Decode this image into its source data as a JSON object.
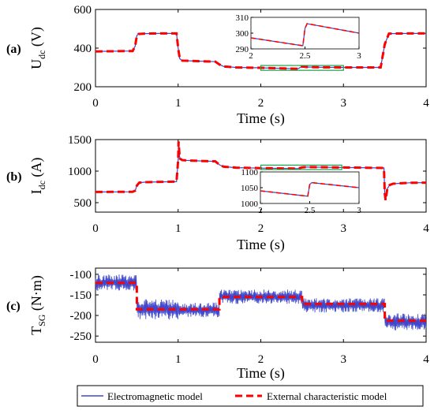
{
  "colors": {
    "electromagnetic": "#3f48cc",
    "external": "#ff0000",
    "zoom_box": "#19a34a",
    "axis": "#000000"
  },
  "legend": {
    "electromagnetic_label": "Electromagnetic model",
    "external_label": "External characteristic model"
  },
  "chart_data": [
    {
      "type": "line",
      "panel_label": "(a)",
      "ylabel_main": "U",
      "ylabel_sub": "dc",
      "ylabel_unit": "(V)",
      "xlabel": "Time (s)",
      "xlim": [
        0,
        4
      ],
      "ylim": [
        200,
        600
      ],
      "xticks": [
        "0",
        "1",
        "2",
        "3",
        "4"
      ],
      "yticks": [
        "200",
        "400",
        "600"
      ],
      "grid": false,
      "series": [
        {
          "name": "Electromagnetic model",
          "x": [
            0,
            0.45,
            0.48,
            0.5,
            0.52,
            0.6,
            0.8,
            0.98,
            1.0,
            1.02,
            1.05,
            1.3,
            1.45,
            1.5,
            1.55,
            1.7,
            2.0,
            2.45,
            2.5,
            2.55,
            2.7,
            3.0,
            3.45,
            3.5,
            3.55,
            3.8,
            4.0
          ],
          "y": [
            383,
            385,
            410,
            465,
            473,
            475,
            476,
            476,
            400,
            345,
            335,
            332,
            330,
            315,
            305,
            300,
            298,
            293,
            305,
            302,
            301,
            300,
            300,
            420,
            475,
            476,
            476
          ]
        },
        {
          "name": "External characteristic model",
          "x": [
            0,
            0.45,
            0.48,
            0.5,
            0.52,
            0.6,
            0.8,
            0.98,
            1.0,
            1.02,
            1.05,
            1.3,
            1.45,
            1.5,
            1.55,
            1.7,
            2.0,
            2.45,
            2.5,
            2.55,
            2.7,
            3.0,
            3.45,
            3.5,
            3.55,
            3.8,
            4.0
          ],
          "y": [
            383,
            385,
            410,
            465,
            473,
            475,
            476,
            476,
            400,
            345,
            335,
            332,
            330,
            315,
            305,
            300,
            298,
            293,
            305,
            302,
            301,
            300,
            300,
            420,
            475,
            476,
            476
          ]
        }
      ],
      "zoom_region": {
        "x": [
          2,
          3
        ],
        "y": [
          285,
          310
        ]
      },
      "inset": {
        "xlim": [
          2,
          3
        ],
        "ylim": [
          290,
          310
        ],
        "xticks": [
          "2",
          "2.5",
          "3"
        ],
        "yticks": [
          "290",
          "300",
          "310"
        ],
        "x": [
          2,
          2.48,
          2.5,
          2.52,
          3
        ],
        "y": [
          297,
          292,
          303,
          306,
          300
        ]
      }
    },
    {
      "type": "line",
      "panel_label": "(b)",
      "ylabel_main": "I",
      "ylabel_sub": "dc",
      "ylabel_unit": "(A)",
      "xlabel": "Time (s)",
      "xlim": [
        0,
        4
      ],
      "ylim": [
        350,
        1500
      ],
      "xticks": [
        "0",
        "1",
        "2",
        "3",
        "4"
      ],
      "yticks": [
        "500",
        "1000",
        "1500"
      ],
      "grid": false,
      "series": [
        {
          "name": "Electromagnetic model",
          "x": [
            0,
            0.45,
            0.48,
            0.5,
            0.53,
            0.6,
            0.8,
            0.98,
            1.0,
            1.005,
            1.02,
            1.05,
            1.1,
            1.3,
            1.45,
            1.5,
            1.55,
            1.7,
            2.0,
            2.45,
            2.5,
            2.55,
            3.0,
            3.49,
            3.5,
            3.51,
            3.53,
            3.56,
            3.6,
            3.8,
            4.0
          ],
          "y": [
            670,
            672,
            690,
            770,
            818,
            825,
            830,
            832,
            1180,
            1470,
            1200,
            1175,
            1170,
            1160,
            1155,
            1100,
            1070,
            1055,
            1048,
            1040,
            1060,
            1065,
            1058,
            1050,
            640,
            540,
            720,
            780,
            800,
            815,
            818
          ]
        },
        {
          "name": "External characteristic model",
          "x": [
            0,
            0.45,
            0.48,
            0.5,
            0.53,
            0.6,
            0.8,
            0.98,
            1.0,
            1.005,
            1.02,
            1.05,
            1.1,
            1.3,
            1.45,
            1.5,
            1.55,
            1.7,
            2.0,
            2.45,
            2.5,
            2.55,
            3.0,
            3.49,
            3.5,
            3.51,
            3.53,
            3.56,
            3.6,
            3.8,
            4.0
          ],
          "y": [
            670,
            672,
            690,
            770,
            818,
            825,
            830,
            832,
            1180,
            1470,
            1200,
            1175,
            1170,
            1160,
            1155,
            1100,
            1070,
            1055,
            1048,
            1040,
            1060,
            1065,
            1058,
            1050,
            640,
            540,
            720,
            780,
            800,
            815,
            818
          ]
        }
      ],
      "zoom_region": {
        "x": [
          2,
          2.98
        ],
        "y": [
          1025,
          1095
        ]
      },
      "inset": {
        "xlim": [
          2,
          3
        ],
        "ylim": [
          1000,
          1100
        ],
        "xticks": [
          "2",
          "2.5",
          "3"
        ],
        "yticks": [
          "1000",
          "1050",
          "1100"
        ],
        "x": [
          2,
          2.48,
          2.5,
          2.52,
          3
        ],
        "y": [
          1040,
          1023,
          1060,
          1066,
          1050
        ]
      }
    },
    {
      "type": "line",
      "panel_label": "(c)",
      "ylabel_main": "T",
      "ylabel_sub": "SG",
      "ylabel_unit": "(N·m)",
      "xlabel": "Time (s)",
      "xlim": [
        0,
        4
      ],
      "ylim": [
        -265,
        -85
      ],
      "xticks": [
        "0",
        "1",
        "2",
        "3",
        "4"
      ],
      "yticks": [
        "-100",
        "-150",
        "-200",
        "-250"
      ],
      "grid": false,
      "series": [
        {
          "name": "Electromagnetic model",
          "band_segments": [
            {
              "x": [
                0,
                0.5
              ],
              "lo": -140,
              "hi": -100
            },
            {
              "x": [
                0.5,
                1.0
              ],
              "lo": -210,
              "hi": -160
            },
            {
              "x": [
                1.0,
                1.5
              ],
              "lo": -205,
              "hi": -168
            },
            {
              "x": [
                1.5,
                2.5
              ],
              "lo": -172,
              "hi": -137
            },
            {
              "x": [
                2.5,
                3.5
              ],
              "lo": -193,
              "hi": -158
            },
            {
              "x": [
                3.5,
                4.0
              ],
              "lo": -237,
              "hi": -195
            }
          ]
        },
        {
          "name": "External characteristic model",
          "x": [
            0,
            0.5,
            0.5,
            1.5,
            1.5,
            2.5,
            2.5,
            3.5,
            3.5,
            4.0
          ],
          "y": [
            -121,
            -121,
            -185,
            -185,
            -155,
            -155,
            -172,
            -172,
            -213,
            -213
          ]
        }
      ]
    }
  ]
}
